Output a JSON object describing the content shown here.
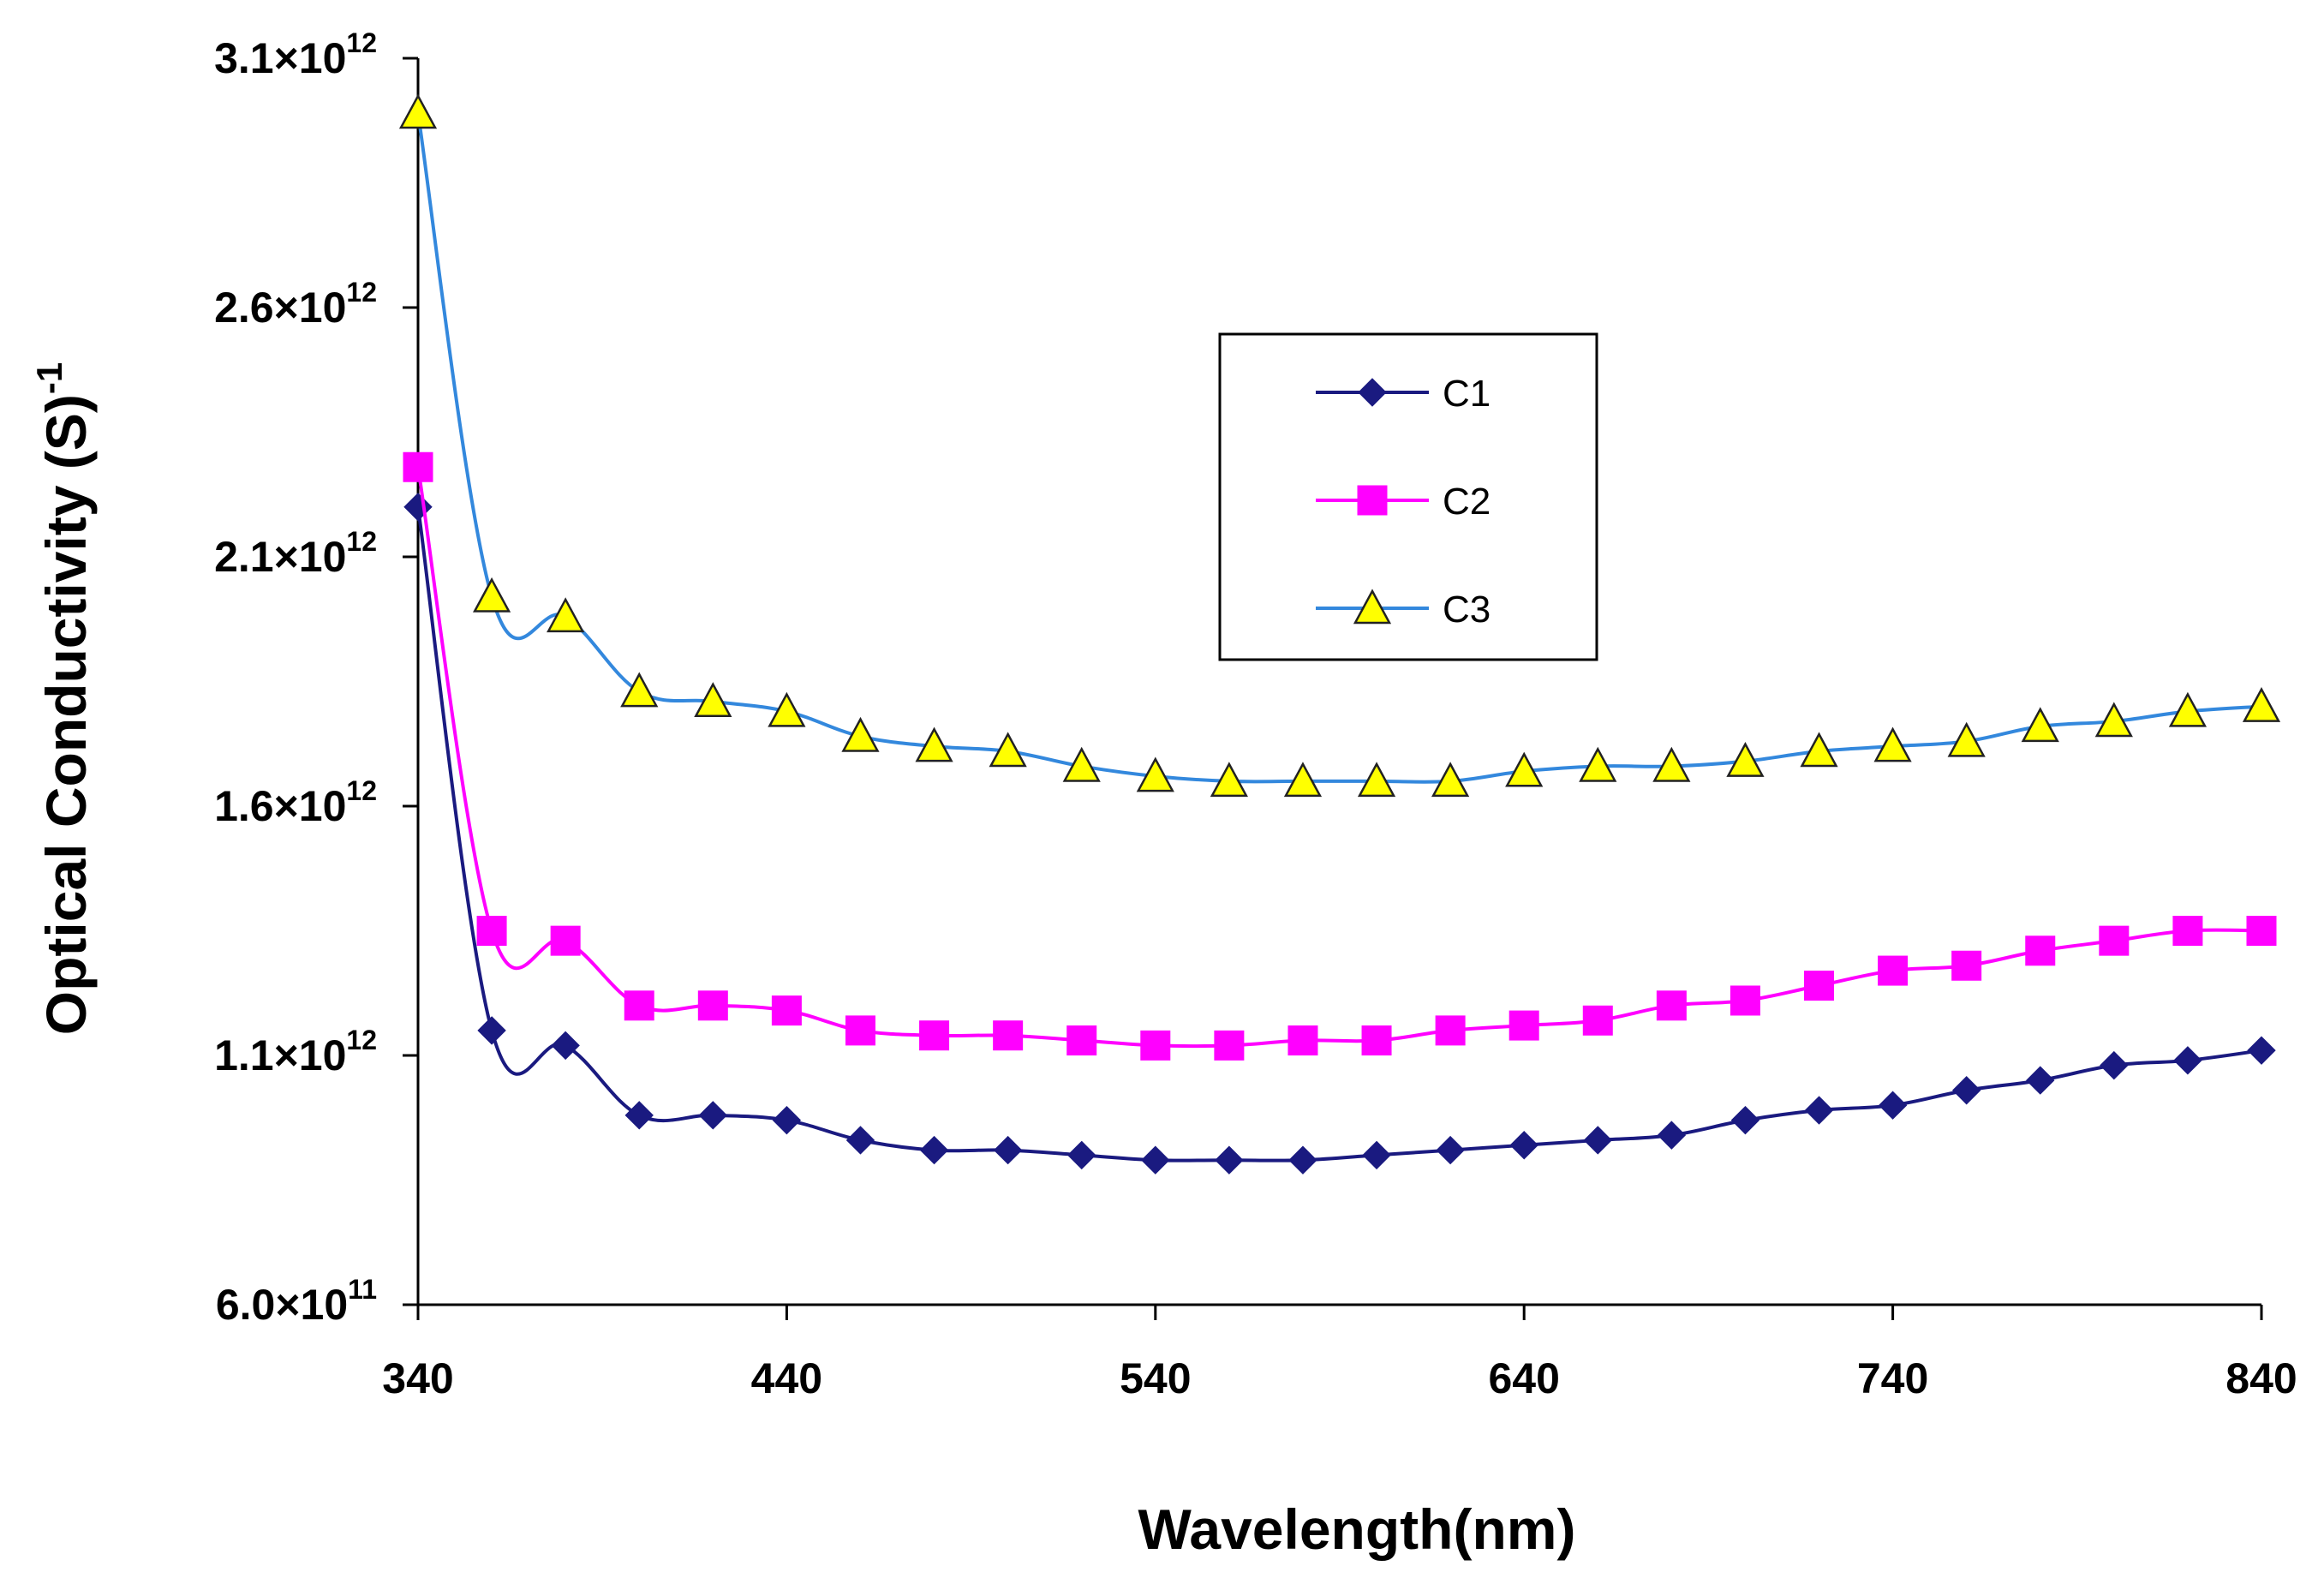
{
  "chart_data": {
    "type": "line",
    "title": "",
    "xlabel": "Wavelength(nm)",
    "ylabel": "Optical Conductivity (S)",
    "ylabel_sup": "-1",
    "xlim": [
      340,
      840
    ],
    "ylim": [
      600000000000.0,
      3100000000000.0
    ],
    "xticks": [
      340,
      440,
      540,
      640,
      740,
      840
    ],
    "yticks": [
      {
        "value": 600000000000.0,
        "mantissa": "6.0×10",
        "exp": "11"
      },
      {
        "value": 1100000000000.0,
        "mantissa": "1.1×10",
        "exp": "12"
      },
      {
        "value": 1600000000000.0,
        "mantissa": "1.6×10",
        "exp": "12"
      },
      {
        "value": 2100000000000.0,
        "mantissa": "2.1×10",
        "exp": "12"
      },
      {
        "value": 2600000000000.0,
        "mantissa": "2.6×10",
        "exp": "12"
      },
      {
        "value": 3100000000000.0,
        "mantissa": "3.1×10",
        "exp": "12"
      }
    ],
    "legend_position": "upper-middle",
    "x": [
      340,
      360,
      380,
      400,
      420,
      440,
      460,
      480,
      500,
      520,
      540,
      560,
      580,
      600,
      620,
      640,
      660,
      680,
      700,
      720,
      740,
      760,
      780,
      800,
      820,
      840
    ],
    "series": [
      {
        "name": "C1",
        "color": "#1a1a80",
        "marker": "diamond",
        "values": [
          2200000000000.0,
          1150000000000.0,
          1120000000000.0,
          980000000000.0,
          980000000000.0,
          970000000000.0,
          930000000000.0,
          910000000000.0,
          910000000000.0,
          900000000000.0,
          890000000000.0,
          890000000000.0,
          890000000000.0,
          900000000000.0,
          910000000000.0,
          920000000000.0,
          930000000000.0,
          940000000000.0,
          970000000000.0,
          990000000000.0,
          1000000000000.0,
          1030000000000.0,
          1050000000000.0,
          1080000000000.0,
          1090000000000.0,
          1110000000000.0
        ]
      },
      {
        "name": "C2",
        "color": "#ff00ff",
        "marker": "square",
        "values": [
          2280000000000.0,
          1350000000000.0,
          1330000000000.0,
          1200000000000.0,
          1200000000000.0,
          1190000000000.0,
          1150000000000.0,
          1140000000000.0,
          1140000000000.0,
          1130000000000.0,
          1120000000000.0,
          1120000000000.0,
          1130000000000.0,
          1130000000000.0,
          1150000000000.0,
          1160000000000.0,
          1170000000000.0,
          1200000000000.0,
          1210000000000.0,
          1240000000000.0,
          1270000000000.0,
          1280000000000.0,
          1310000000000.0,
          1330000000000.0,
          1350000000000.0,
          1350000000000.0
        ]
      },
      {
        "name": "C3",
        "color": "#3388dd",
        "marker_fill": "#ffff00",
        "marker": "triangle",
        "values": [
          2990000000000.0,
          2020000000000.0,
          1980000000000.0,
          1830000000000.0,
          1810000000000.0,
          1790000000000.0,
          1740000000000.0,
          1720000000000.0,
          1710000000000.0,
          1680000000000.0,
          1660000000000.0,
          1650000000000.0,
          1650000000000.0,
          1650000000000.0,
          1650000000000.0,
          1670000000000.0,
          1680000000000.0,
          1680000000000.0,
          1690000000000.0,
          1710000000000.0,
          1720000000000.0,
          1730000000000.0,
          1760000000000.0,
          1770000000000.0,
          1790000000000.0,
          1800000000000.0
        ]
      }
    ]
  }
}
